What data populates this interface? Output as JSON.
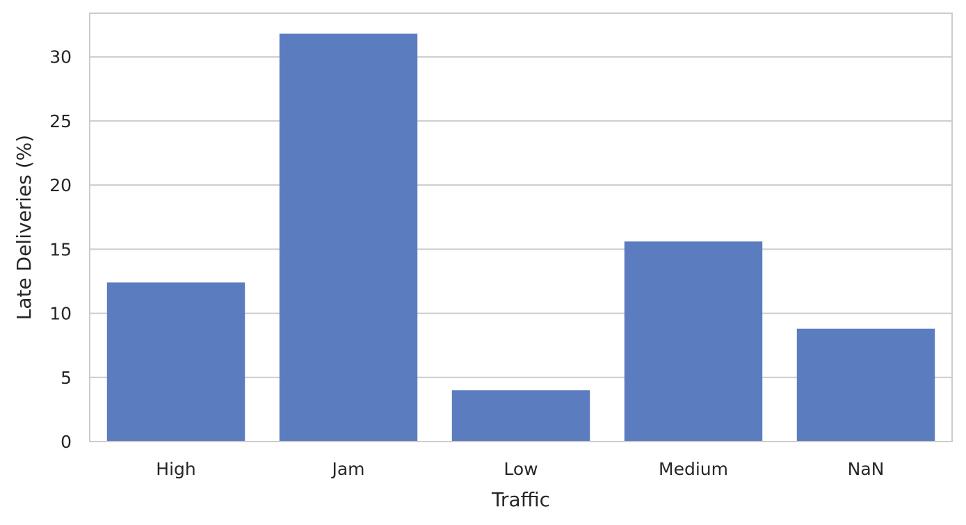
{
  "chart_data": {
    "type": "bar",
    "title": "",
    "xlabel": "Traffic",
    "ylabel": "Late Deliveries (%)",
    "categories": [
      "High",
      "Jam",
      "Low",
      "Medium",
      "NaN"
    ],
    "values": [
      12.4,
      31.8,
      4.0,
      15.6,
      8.8
    ],
    "ylim": [
      0,
      33.4
    ],
    "yticks": [
      0,
      5,
      10,
      15,
      20,
      25,
      30
    ],
    "grid": "horizontal",
    "bar_color": "#5b7cbe",
    "grid_color": "#cccccc",
    "frame_color": "#cccccc"
  }
}
